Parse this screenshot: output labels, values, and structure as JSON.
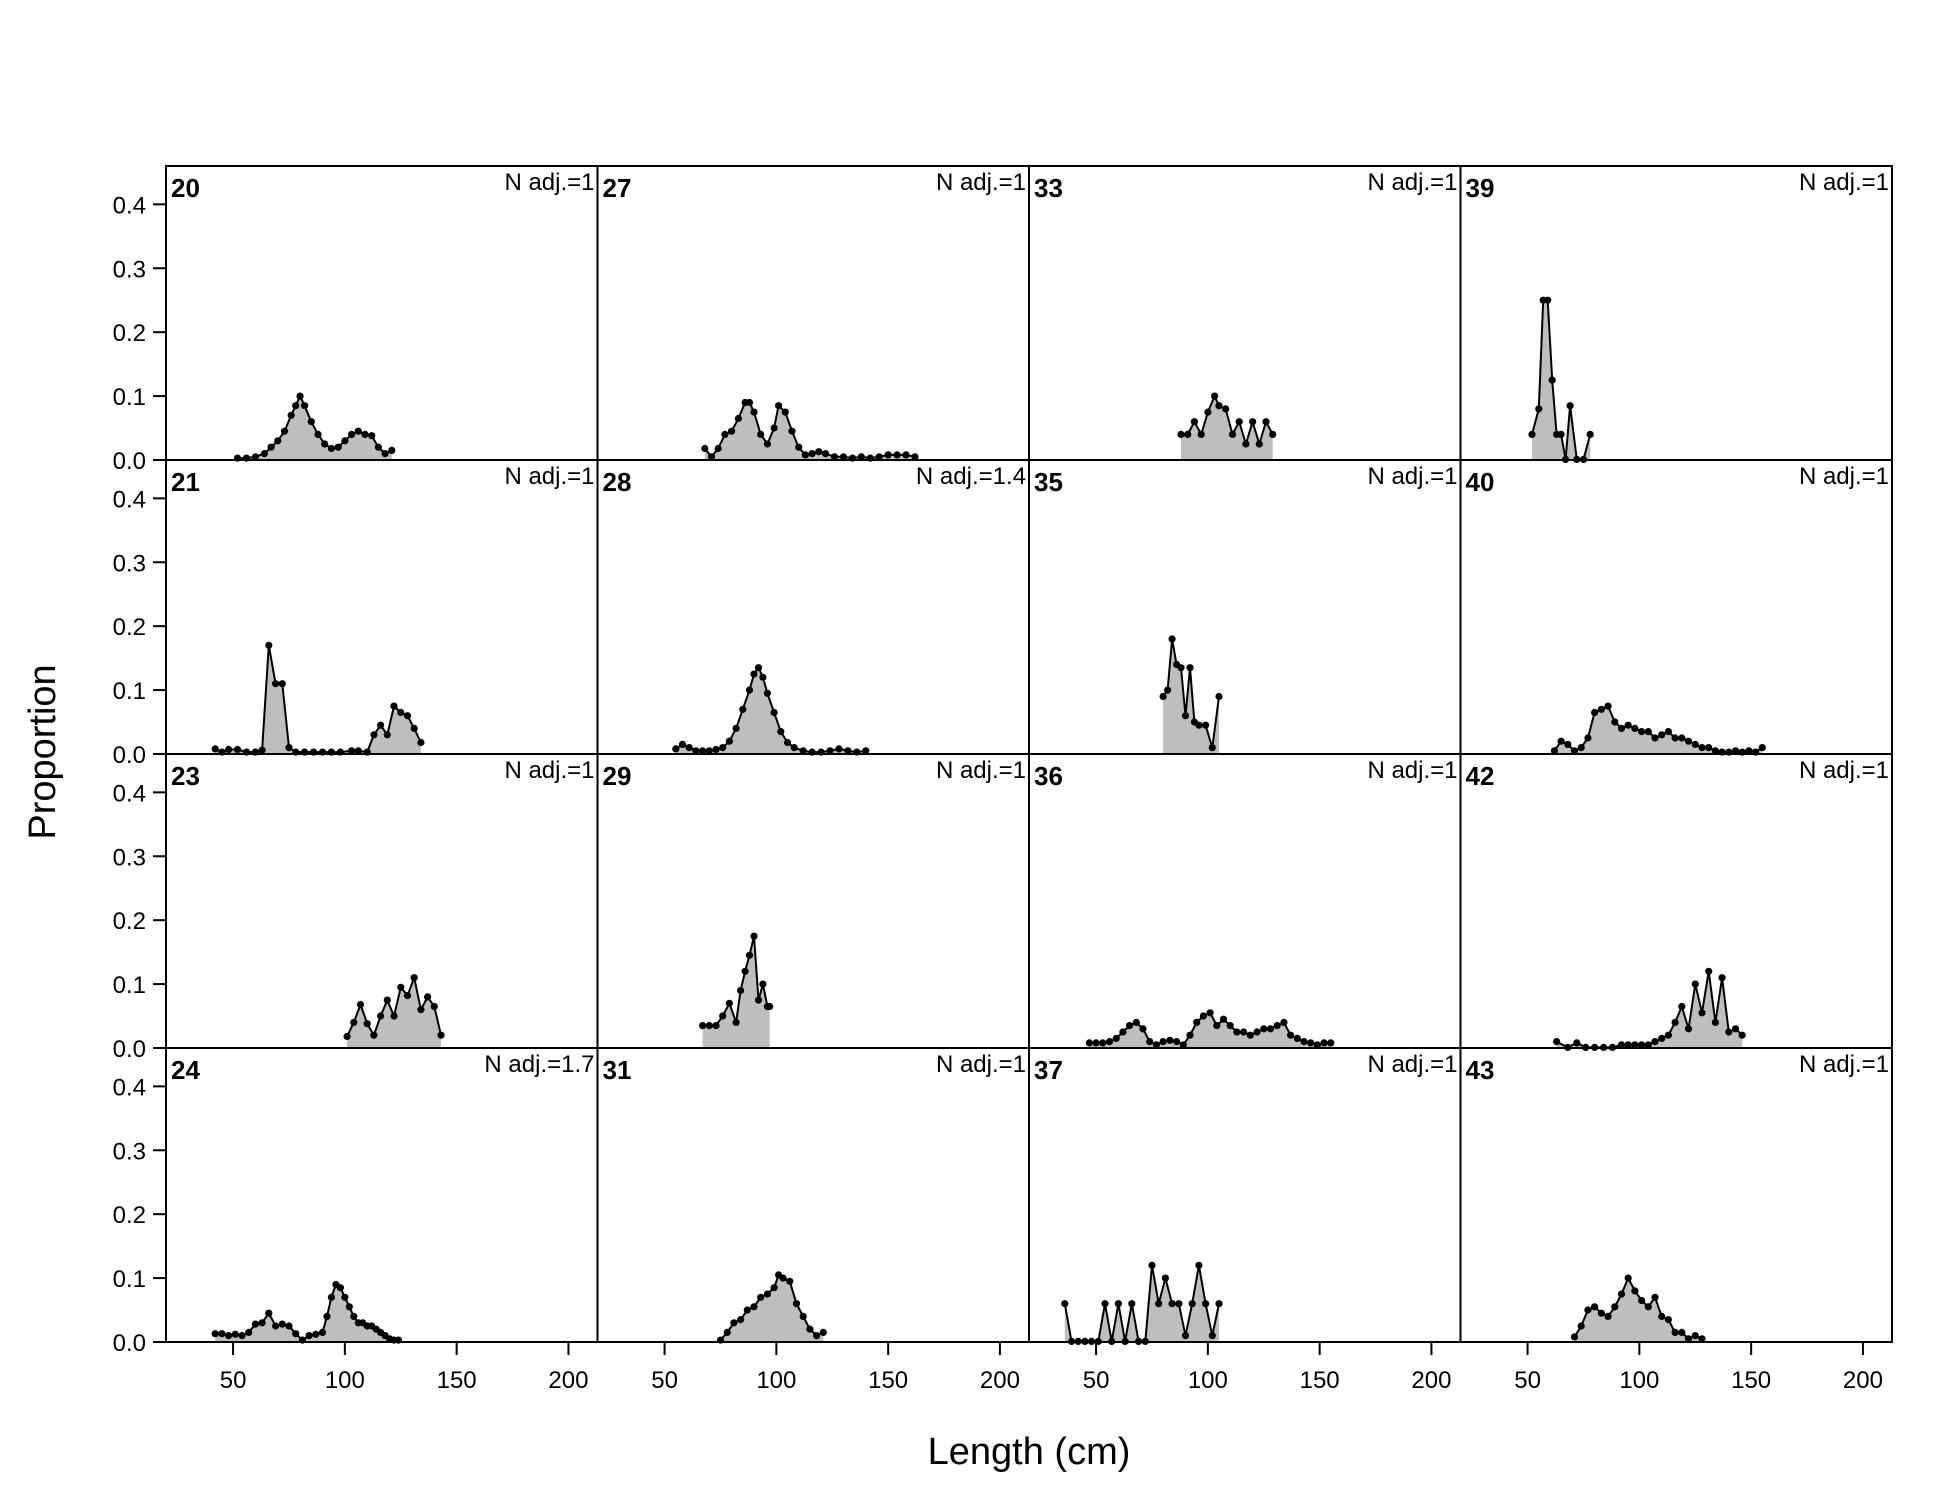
{
  "chart_data": {
    "type": "area",
    "xlabel": "Length (cm)",
    "ylabel": "Proportion",
    "xlim": [
      20,
      213
    ],
    "ylim": [
      0,
      0.46
    ],
    "xticks": [
      50,
      100,
      150,
      200
    ],
    "yticks": [
      "0.0",
      "0.1",
      "0.2",
      "0.3",
      "0.4"
    ],
    "grid": false,
    "fill_color": "#BEBEBE",
    "line_color": "#000000",
    "panels": [
      {
        "label": "20",
        "n_adj": "N adj.=1",
        "x": [
          52,
          56,
          60,
          64,
          67,
          70,
          73,
          76,
          78,
          80,
          82,
          85,
          88,
          91,
          94,
          97,
          100,
          103,
          106,
          109,
          112,
          115,
          118,
          121
        ],
        "y": [
          0.003,
          0.003,
          0.005,
          0.01,
          0.02,
          0.03,
          0.045,
          0.07,
          0.085,
          0.1,
          0.085,
          0.06,
          0.04,
          0.025,
          0.018,
          0.02,
          0.03,
          0.04,
          0.045,
          0.04,
          0.038,
          0.02,
          0.01,
          0.015
        ]
      },
      {
        "label": "21",
        "n_adj": "N adj.=1",
        "x": [
          42,
          45,
          48,
          52,
          56,
          60,
          63,
          66,
          69,
          72,
          75,
          78,
          82,
          86,
          90,
          94,
          98,
          103,
          106,
          110,
          113,
          116,
          119,
          122,
          125,
          128,
          131,
          134
        ],
        "y": [
          0.008,
          0.003,
          0.007,
          0.007,
          0.003,
          0.003,
          0.006,
          0.17,
          0.11,
          0.11,
          0.01,
          0.003,
          0.003,
          0.003,
          0.003,
          0.003,
          0.003,
          0.005,
          0.005,
          0.003,
          0.03,
          0.045,
          0.03,
          0.075,
          0.065,
          0.06,
          0.04,
          0.018
        ]
      },
      {
        "label": "23",
        "n_adj": "N adj.=1",
        "x": [
          101,
          104,
          107,
          110,
          113,
          116,
          119,
          122,
          125,
          128,
          131,
          134,
          137,
          140,
          143
        ],
        "y": [
          0.018,
          0.04,
          0.068,
          0.038,
          0.02,
          0.05,
          0.075,
          0.05,
          0.095,
          0.082,
          0.11,
          0.06,
          0.08,
          0.065,
          0.02
        ]
      },
      {
        "label": "24",
        "n_adj": "N adj.=1.7",
        "x": [
          42,
          45,
          48,
          51,
          54,
          57,
          60,
          63,
          66,
          69,
          72,
          75,
          78,
          81,
          84,
          87,
          90,
          92,
          94,
          96,
          98,
          100,
          102,
          104,
          106,
          108,
          110,
          112,
          114,
          116,
          118,
          120,
          122,
          124
        ],
        "y": [
          0.013,
          0.013,
          0.01,
          0.012,
          0.01,
          0.015,
          0.028,
          0.03,
          0.045,
          0.025,
          0.028,
          0.025,
          0.013,
          0.003,
          0.01,
          0.012,
          0.015,
          0.04,
          0.07,
          0.09,
          0.085,
          0.07,
          0.055,
          0.04,
          0.03,
          0.03,
          0.025,
          0.025,
          0.02,
          0.015,
          0.01,
          0.005,
          0.003,
          0.003
        ]
      },
      {
        "label": "27",
        "n_adj": "N adj.=1",
        "x": [
          68,
          71,
          74,
          77,
          80,
          83,
          86,
          88,
          90,
          93,
          96,
          99,
          101,
          104,
          107,
          110,
          113,
          116,
          119,
          122,
          126,
          130,
          134,
          138,
          142,
          146,
          150,
          154,
          158,
          162
        ],
        "y": [
          0.018,
          0.005,
          0.018,
          0.04,
          0.045,
          0.065,
          0.09,
          0.09,
          0.075,
          0.04,
          0.025,
          0.05,
          0.085,
          0.075,
          0.045,
          0.02,
          0.008,
          0.01,
          0.013,
          0.01,
          0.005,
          0.005,
          0.003,
          0.005,
          0.003,
          0.005,
          0.008,
          0.008,
          0.008,
          0.005
        ]
      },
      {
        "label": "28",
        "n_adj": "N adj.=1.4",
        "x": [
          55,
          58,
          61,
          64,
          67,
          70,
          73,
          76,
          79,
          82,
          85,
          88,
          90,
          92,
          94,
          96,
          99,
          102,
          105,
          108,
          112,
          116,
          120,
          124,
          128,
          132,
          136,
          140
        ],
        "y": [
          0.008,
          0.015,
          0.01,
          0.005,
          0.005,
          0.005,
          0.007,
          0.01,
          0.02,
          0.04,
          0.07,
          0.1,
          0.125,
          0.135,
          0.12,
          0.095,
          0.065,
          0.035,
          0.018,
          0.01,
          0.005,
          0.003,
          0.003,
          0.005,
          0.008,
          0.005,
          0.003,
          0.005
        ]
      },
      {
        "label": "29",
        "n_adj": "N adj.=1",
        "x": [
          67,
          70,
          73,
          76,
          79,
          82,
          84,
          86,
          88,
          90,
          92,
          94,
          96,
          97
        ],
        "y": [
          0.035,
          0.035,
          0.035,
          0.05,
          0.07,
          0.04,
          0.09,
          0.12,
          0.145,
          0.175,
          0.075,
          0.1,
          0.065,
          0.065
        ]
      },
      {
        "label": "31",
        "n_adj": "N adj.=1",
        "x": [
          75,
          78,
          81,
          84,
          87,
          90,
          93,
          96,
          99,
          101,
          103,
          106,
          109,
          112,
          115,
          118,
          121
        ],
        "y": [
          0.003,
          0.015,
          0.03,
          0.035,
          0.05,
          0.055,
          0.07,
          0.075,
          0.085,
          0.105,
          0.1,
          0.095,
          0.06,
          0.04,
          0.02,
          0.01,
          0.015
        ]
      },
      {
        "label": "33",
        "n_adj": "N adj.=1",
        "x": [
          88,
          91,
          94,
          97,
          100,
          103,
          105,
          108,
          111,
          114,
          117,
          120,
          123,
          126,
          129
        ],
        "y": [
          0.04,
          0.04,
          0.06,
          0.04,
          0.075,
          0.1,
          0.085,
          0.08,
          0.04,
          0.06,
          0.025,
          0.06,
          0.025,
          0.06,
          0.04
        ]
      },
      {
        "label": "35",
        "n_adj": "N adj.=1",
        "x": [
          80,
          82,
          84,
          86,
          88,
          90,
          92,
          94,
          96,
          99,
          102,
          105
        ],
        "y": [
          0.09,
          0.1,
          0.18,
          0.14,
          0.135,
          0.06,
          0.135,
          0.05,
          0.045,
          0.045,
          0.01,
          0.09
        ]
      },
      {
        "label": "36",
        "n_adj": "N adj.=1",
        "x": [
          47,
          50,
          53,
          56,
          59,
          62,
          65,
          68,
          71,
          74,
          77,
          80,
          83,
          86,
          89,
          92,
          95,
          98,
          101,
          104,
          107,
          110,
          113,
          116,
          119,
          122,
          125,
          128,
          131,
          134,
          137,
          140,
          143,
          146,
          149,
          152,
          155
        ],
        "y": [
          0.008,
          0.008,
          0.008,
          0.01,
          0.015,
          0.025,
          0.035,
          0.04,
          0.03,
          0.01,
          0.005,
          0.01,
          0.012,
          0.01,
          0.005,
          0.02,
          0.04,
          0.05,
          0.055,
          0.035,
          0.045,
          0.035,
          0.025,
          0.025,
          0.02,
          0.025,
          0.03,
          0.03,
          0.035,
          0.04,
          0.02,
          0.015,
          0.01,
          0.008,
          0.005,
          0.008,
          0.008
        ]
      },
      {
        "label": "37",
        "n_adj": "N adj.=1",
        "x": [
          36,
          39,
          42,
          45,
          48,
          51,
          54,
          57,
          60,
          63,
          66,
          69,
          72,
          75,
          78,
          81,
          84,
          87,
          90,
          93,
          96,
          99,
          102,
          105
        ],
        "y": [
          0.06,
          0.001,
          0.001,
          0.001,
          0.001,
          0.001,
          0.06,
          0.001,
          0.06,
          0.001,
          0.06,
          0.001,
          0.001,
          0.12,
          0.06,
          0.1,
          0.06,
          0.06,
          0.01,
          0.06,
          0.12,
          0.06,
          0.01,
          0.06
        ]
      },
      {
        "label": "39",
        "n_adj": "N adj.=1",
        "x": [
          52,
          55,
          57,
          59,
          61,
          63,
          65,
          67,
          69,
          72,
          75,
          78
        ],
        "y": [
          0.04,
          0.08,
          0.25,
          0.25,
          0.125,
          0.04,
          0.04,
          0.001,
          0.085,
          0.001,
          0.001,
          0.04
        ]
      },
      {
        "label": "40",
        "n_adj": "N adj.=1",
        "x": [
          62,
          65,
          68,
          71,
          74,
          77,
          80,
          83,
          86,
          89,
          92,
          95,
          98,
          101,
          104,
          107,
          110,
          113,
          116,
          119,
          122,
          125,
          128,
          131,
          134,
          137,
          140,
          143,
          146,
          149,
          152,
          155
        ],
        "y": [
          0.005,
          0.02,
          0.015,
          0.005,
          0.01,
          0.025,
          0.065,
          0.07,
          0.075,
          0.05,
          0.04,
          0.045,
          0.04,
          0.035,
          0.035,
          0.025,
          0.03,
          0.035,
          0.025,
          0.025,
          0.02,
          0.015,
          0.01,
          0.01,
          0.005,
          0.003,
          0.003,
          0.005,
          0.003,
          0.005,
          0.003,
          0.01
        ]
      },
      {
        "label": "42",
        "n_adj": "N adj.=1",
        "x": [
          63,
          68,
          72,
          76,
          80,
          84,
          88,
          92,
          95,
          98,
          101,
          104,
          107,
          110,
          113,
          116,
          119,
          122,
          125,
          128,
          131,
          134,
          137,
          140,
          143,
          146
        ],
        "y": [
          0.01,
          0.001,
          0.008,
          0.001,
          0.001,
          0.001,
          0.001,
          0.005,
          0.005,
          0.005,
          0.005,
          0.005,
          0.01,
          0.015,
          0.02,
          0.04,
          0.065,
          0.03,
          0.1,
          0.055,
          0.12,
          0.04,
          0.11,
          0.025,
          0.03,
          0.02
        ]
      },
      {
        "label": "43",
        "n_adj": "N adj.=1",
        "x": [
          71,
          74,
          77,
          80,
          83,
          86,
          89,
          92,
          95,
          98,
          101,
          104,
          107,
          110,
          113,
          116,
          119,
          122,
          125,
          128
        ],
        "y": [
          0.008,
          0.025,
          0.05,
          0.055,
          0.045,
          0.04,
          0.055,
          0.075,
          0.1,
          0.08,
          0.065,
          0.055,
          0.07,
          0.04,
          0.035,
          0.015,
          0.015,
          0.005,
          0.01,
          0.005
        ]
      }
    ]
  }
}
